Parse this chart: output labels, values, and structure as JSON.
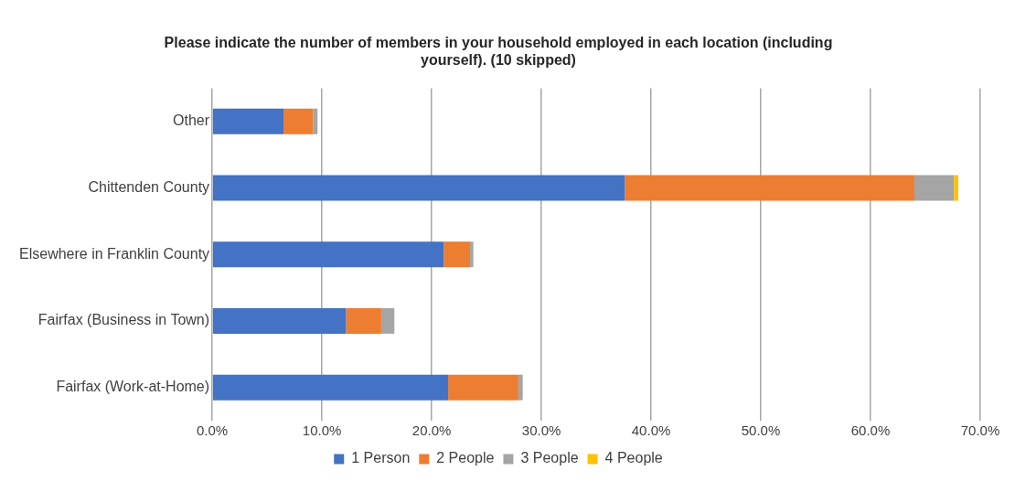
{
  "chart_data": {
    "type": "bar",
    "orientation": "horizontal",
    "stacked": true,
    "title": "Please indicate the number of members in your household employed in each location (including yourself). (10 skipped)",
    "categories": [
      "Other",
      "Chittenden County",
      "Elsewhere in Franklin County",
      "Fairfax (Business in Town)",
      "Fairfax (Work-at-Home)"
    ],
    "series": [
      {
        "name": "1 Person",
        "color": "#4472c4",
        "values": [
          6.5,
          37.6,
          21.1,
          12.2,
          21.5
        ]
      },
      {
        "name": "2 People",
        "color": "#ed7d31",
        "values": [
          2.7,
          26.4,
          2.4,
          3.2,
          6.4
        ]
      },
      {
        "name": "3 People",
        "color": "#a5a5a5",
        "values": [
          0.4,
          3.6,
          0.3,
          1.2,
          0.4
        ]
      },
      {
        "name": "4 People",
        "color": "#ffc000",
        "values": [
          0,
          0.4,
          0,
          0,
          0
        ]
      }
    ],
    "xlim": [
      0,
      70
    ],
    "xticks": [
      {
        "value": 0,
        "label": "0.0%"
      },
      {
        "value": 10,
        "label": "10.0%"
      },
      {
        "value": 20,
        "label": "20.0%"
      },
      {
        "value": 30,
        "label": "30.0%"
      },
      {
        "value": 40,
        "label": "40.0%"
      },
      {
        "value": 50,
        "label": "50.0%"
      },
      {
        "value": 60,
        "label": "60.0%"
      },
      {
        "value": 70,
        "label": "70.0%"
      }
    ],
    "grid": "x",
    "legend": "bottom"
  }
}
